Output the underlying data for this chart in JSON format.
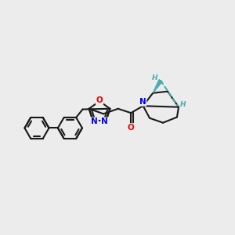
{
  "background_color": "#ececec",
  "bond_color": "#1a1a1a",
  "bond_width": 1.5,
  "N_color": "#0000ee",
  "O_color": "#ee0000",
  "stereo_color": "#4aadad",
  "figsize": [
    3.0,
    3.0
  ],
  "dpi": 100,
  "xlim": [
    0,
    10
  ],
  "ylim": [
    0,
    10
  ]
}
